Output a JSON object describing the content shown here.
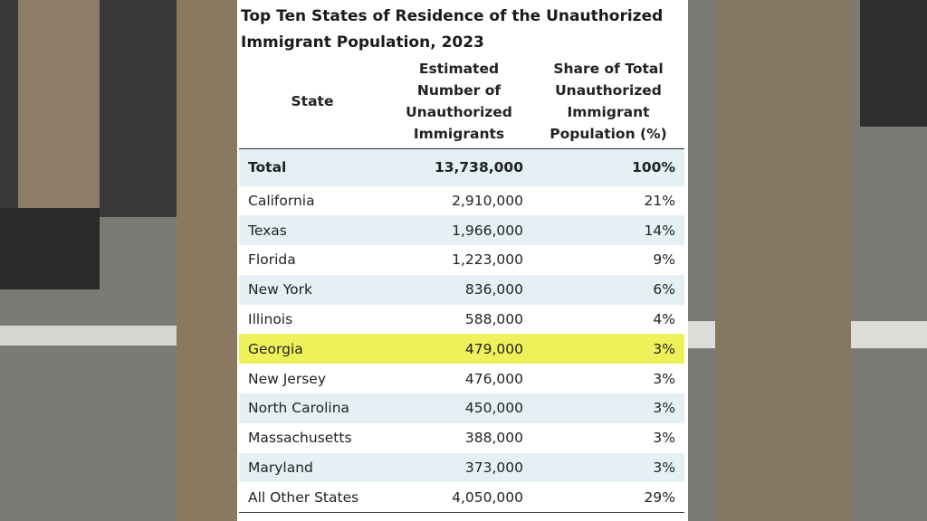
{
  "title": "Top Ten States of Residence of the Unauthorized Immigrant Population, 2023",
  "table": {
    "header": [
      "State",
      "Estimated Number of Unauthorized Immigrants",
      "Share of Total Unauthorized Immigrant Population (%)"
    ],
    "rows": [
      [
        "Total",
        "13,738,000",
        "100%"
      ],
      [
        "California",
        "2,910,000",
        "21%"
      ],
      [
        "Texas",
        "1,966,000",
        "14%"
      ],
      [
        "Florida",
        "1,223,000",
        "9%"
      ],
      [
        "New York",
        "836,000",
        "6%"
      ],
      [
        "Illinois",
        "588,000",
        "4%"
      ],
      [
        "Georgia",
        "479,000",
        "3%"
      ],
      [
        "New Jersey",
        "476,000",
        "3%"
      ],
      [
        "North Carolina",
        "450,000",
        "3%"
      ],
      [
        "Massachusetts",
        "388,000",
        "3%"
      ],
      [
        "Maryland",
        "373,000",
        "3%"
      ],
      [
        "All Other States",
        "4,050,000",
        "29%"
      ]
    ]
  }
}
